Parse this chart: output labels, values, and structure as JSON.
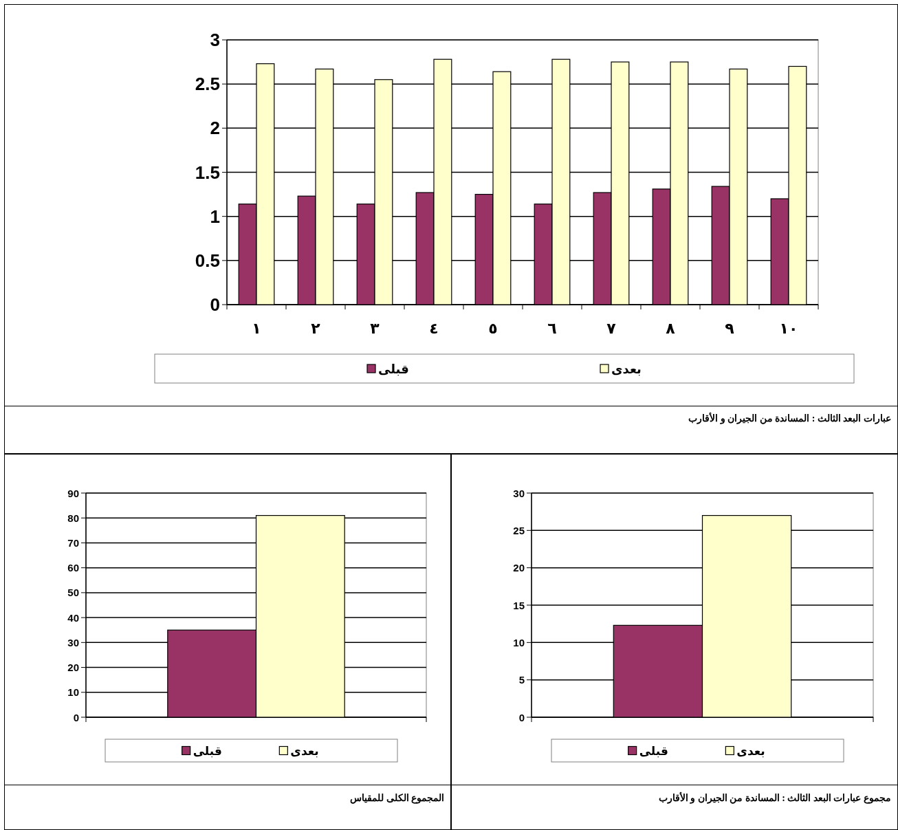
{
  "chart_data": [
    {
      "type": "bar",
      "title": "عبارات البعد الثالث  :  المساندة من الجيران و الأقارب",
      "categories": [
        "١",
        "٢",
        "٣",
        "٤",
        "٥",
        "٦",
        "٧",
        "٨",
        "٩",
        "١٠"
      ],
      "series": [
        {
          "name": "قبلى",
          "color": "#993366",
          "values": [
            1.14,
            1.23,
            1.14,
            1.27,
            1.25,
            1.14,
            1.27,
            1.31,
            1.34,
            1.2
          ]
        },
        {
          "name": "بعدى",
          "color": "#ffffcc",
          "values": [
            2.73,
            2.67,
            2.55,
            2.78,
            2.64,
            2.78,
            2.75,
            2.75,
            2.67,
            2.7
          ]
        }
      ],
      "ylim": [
        0,
        3
      ],
      "yticks": [
        0,
        0.5,
        1,
        1.5,
        2,
        2.5,
        3
      ],
      "grid": "y",
      "legend": "bottom"
    },
    {
      "type": "bar",
      "title": "المجموع الكلى للمقياس",
      "categories": [
        null
      ],
      "series": [
        {
          "name": "قبلى",
          "color": "#993366",
          "values": [
            35
          ]
        },
        {
          "name": "بعدى",
          "color": "#ffffcc",
          "values": [
            81
          ]
        }
      ],
      "ylim": [
        0,
        90
      ],
      "yticks": [
        0,
        10,
        20,
        30,
        40,
        50,
        60,
        70,
        80,
        90
      ],
      "grid": "y",
      "legend": "bottom"
    },
    {
      "type": "bar",
      "title": "مجموع عبارات البعد الثالث  :  المساندة من الجيران و الأقارب",
      "categories": [
        null
      ],
      "series": [
        {
          "name": "قبلى",
          "color": "#993366",
          "values": [
            12.3
          ]
        },
        {
          "name": "بعدى",
          "color": "#ffffcc",
          "values": [
            27
          ]
        }
      ],
      "ylim": [
        0,
        30
      ],
      "yticks": [
        0,
        5,
        10,
        15,
        20,
        25,
        30
      ],
      "grid": "y",
      "legend": "bottom"
    }
  ]
}
